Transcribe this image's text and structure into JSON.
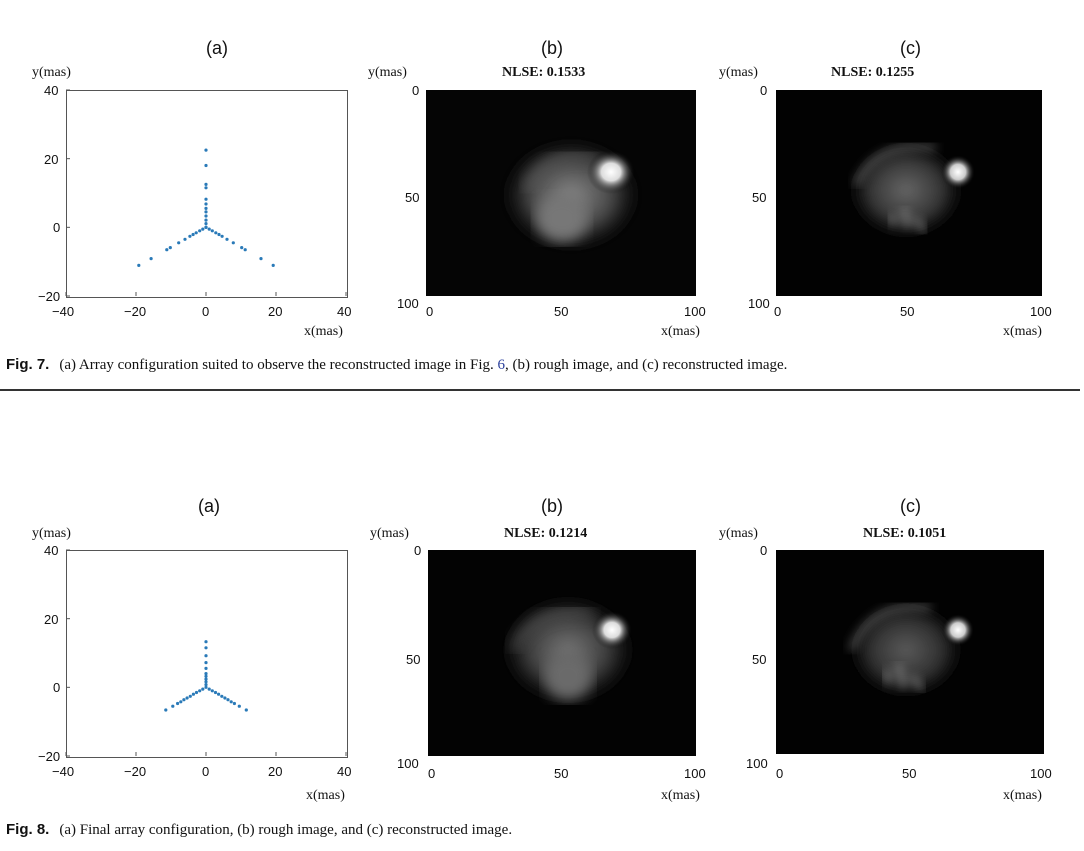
{
  "figures": [
    {
      "panel_labels": [
        "(a)",
        "(b)",
        "(c)"
      ],
      "y_label": "y(mas)",
      "x_label": "x(mas)",
      "nlse_b": "NLSE: 0.1533",
      "nlse_c": "NLSE: 0.1255",
      "caption_num": "Fig. 7.",
      "caption_pre": "(a) Array configuration suited to observe the reconstructed image in Fig.",
      "caption_ref": "6",
      "caption_post": ", (b) rough image, and (c) reconstructed image."
    },
    {
      "panel_labels": [
        "(a)",
        "(b)",
        "(c)"
      ],
      "y_label": "y(mas)",
      "x_label": "x(mas)",
      "nlse_b": "NLSE: 0.1214",
      "nlse_c": "NLSE: 0.1051",
      "caption_num": "Fig. 8.",
      "caption_pre": "(a) Final array configuration, (b) rough image, and (c) reconstructed image.",
      "caption_ref": "",
      "caption_post": ""
    }
  ],
  "colors": {
    "points": "#2a7ab8",
    "image_bg": "#000000"
  },
  "chart_data": [
    {
      "type": "scatter",
      "title": "(a)",
      "xlabel": "x(mas)",
      "ylabel": "y(mas)",
      "xlim": [
        -40,
        40
      ],
      "ylim": [
        -20,
        40
      ],
      "xticks": [
        "-40",
        "-20",
        "0",
        "20",
        "40"
      ],
      "yticks": [
        "-20",
        "0",
        "20",
        "40"
      ],
      "x": [
        0,
        0,
        0,
        0,
        0,
        0,
        0,
        0,
        0,
        0,
        0,
        0,
        0,
        0,
        0.9,
        1.8,
        2.8,
        3.7,
        4.6,
        6.0,
        7.8,
        10.2,
        11.2,
        15.7,
        19.2,
        -0.9,
        -1.8,
        -2.8,
        -3.7,
        -4.6,
        -6.0,
        -7.8,
        -10.2,
        -11.2,
        -15.7,
        -19.2
      ],
      "y": [
        0,
        1.1,
        2.1,
        3.3,
        4.5,
        5.5,
        6.8,
        8.2,
        11.5,
        12.5,
        18,
        22.5,
        0,
        0,
        -0.5,
        -1,
        -1.6,
        -2.1,
        -2.6,
        -3.5,
        -4.5,
        -5.9,
        -6.5,
        -9.1,
        -11.1,
        -0.5,
        -1,
        -1.6,
        -2.1,
        -2.6,
        -3.5,
        -4.5,
        -5.9,
        -6.5,
        -9.1,
        -11.1
      ]
    },
    {
      "type": "scatter",
      "title": "(a)",
      "xlabel": "x(mas)",
      "ylabel": "y(mas)",
      "xlim": [
        -40,
        40
      ],
      "ylim": [
        -20,
        40
      ],
      "xticks": [
        "-40",
        "-20",
        "0",
        "20",
        "40"
      ],
      "yticks": [
        "-20",
        "0",
        "20",
        "40"
      ],
      "x": [
        0,
        0,
        0,
        0,
        0,
        0,
        0,
        0,
        0,
        0,
        0,
        0.9,
        1.8,
        2.7,
        3.6,
        4.5,
        5.4,
        6.3,
        7.2,
        8.1,
        9.5,
        11.5,
        -0.9,
        -1.8,
        -2.7,
        -3.6,
        -4.5,
        -5.4,
        -6.3,
        -7.2,
        -8.1,
        -9.5,
        -11.5
      ],
      "y": [
        0,
        0.8,
        1.6,
        2.4,
        3.2,
        4.0,
        5.5,
        7.2,
        9.2,
        11.5,
        13.3,
        -0.5,
        -1,
        -1.5,
        -2,
        -2.6,
        -3.1,
        -3.6,
        -4.2,
        -4.7,
        -5.5,
        -6.6,
        -0.5,
        -1,
        -1.5,
        -2,
        -2.6,
        -3.1,
        -3.6,
        -4.2,
        -4.7,
        -5.5,
        -6.6
      ]
    }
  ],
  "image_axes": {
    "xticks": [
      "0",
      "50",
      "100"
    ],
    "yticks": [
      "0",
      "50",
      "100"
    ]
  }
}
